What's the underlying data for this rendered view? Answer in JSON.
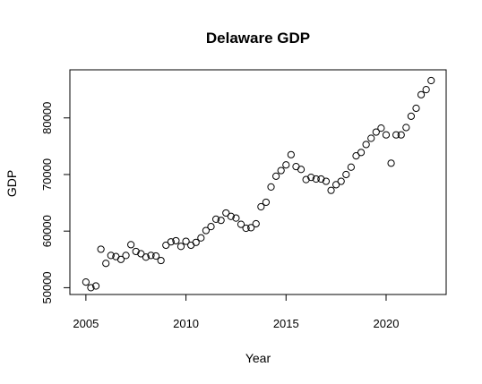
{
  "chart_data": {
    "type": "scatter",
    "title": "Delaware GDP",
    "xlabel": "Year",
    "ylabel": "GDP",
    "xlim": [
      2004.2,
      2023.0
    ],
    "ylim": [
      48800,
      88500
    ],
    "x_ticks": [
      2005,
      2010,
      2015,
      2020
    ],
    "y_ticks": [
      50000,
      60000,
      70000,
      80000
    ],
    "grid": false,
    "point_style": "open-circle",
    "x": [
      2005.0,
      2005.25,
      2005.5,
      2005.75,
      2006.0,
      2006.25,
      2006.5,
      2006.75,
      2007.0,
      2007.25,
      2007.5,
      2007.75,
      2008.0,
      2008.25,
      2008.5,
      2008.75,
      2009.0,
      2009.25,
      2009.5,
      2009.75,
      2010.0,
      2010.25,
      2010.5,
      2010.75,
      2011.0,
      2011.25,
      2011.5,
      2011.75,
      2012.0,
      2012.25,
      2012.5,
      2012.75,
      2013.0,
      2013.25,
      2013.5,
      2013.75,
      2014.0,
      2014.25,
      2014.5,
      2014.75,
      2015.0,
      2015.25,
      2015.5,
      2015.75,
      2016.0,
      2016.25,
      2016.5,
      2016.75,
      2017.0,
      2017.25,
      2017.5,
      2017.75,
      2018.0,
      2018.25,
      2018.5,
      2018.75,
      2019.0,
      2019.25,
      2019.5,
      2019.75,
      2020.0,
      2020.25,
      2020.5,
      2020.75,
      2021.0,
      2021.25,
      2021.5,
      2021.75,
      2022.0,
      2022.25
    ],
    "y": [
      51000,
      50000,
      50300,
      56800,
      54300,
      55700,
      55500,
      55000,
      55700,
      57600,
      56400,
      56000,
      55400,
      55700,
      55600,
      54800,
      57500,
      58100,
      58300,
      57300,
      58200,
      57500,
      58000,
      58800,
      60100,
      60800,
      62100,
      61900,
      63200,
      62600,
      62300,
      61200,
      60500,
      60600,
      61300,
      64300,
      65100,
      67800,
      69700,
      70700,
      71700,
      73500,
      71400,
      70900,
      69100,
      69500,
      69200,
      69200,
      68800,
      67200,
      68200,
      68800,
      70000,
      71300,
      73300,
      73900,
      75300,
      76400,
      77500,
      78200,
      77000,
      72000,
      77000,
      77000,
      78300,
      80300,
      81700,
      84100,
      85000,
      86600
    ]
  }
}
